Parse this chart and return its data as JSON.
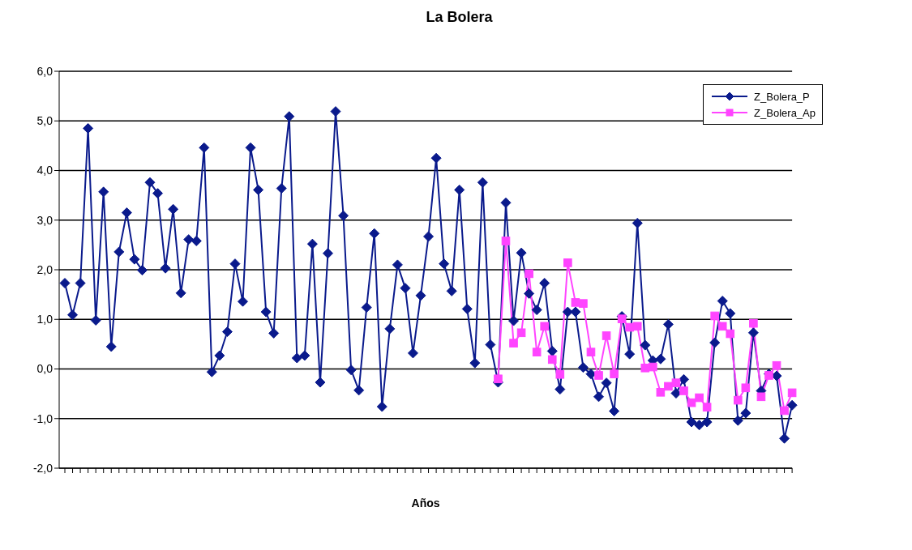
{
  "chart_data": {
    "type": "line",
    "title": "La Bolera",
    "xlabel": "Años",
    "categories": [
      null,
      null,
      null,
      null,
      null,
      null,
      null,
      null,
      null,
      null,
      null,
      null,
      null,
      null,
      null,
      null,
      null,
      null,
      null,
      null,
      null,
      null,
      null,
      null,
      null,
      null,
      null,
      null,
      null,
      null,
      null,
      null,
      null,
      null,
      null,
      null,
      null,
      null,
      null,
      null,
      null,
      null,
      null,
      null,
      null,
      null,
      null,
      null,
      null,
      null,
      null,
      null,
      null,
      null,
      null,
      null,
      null,
      null,
      null,
      null,
      null,
      null,
      null,
      null,
      null,
      null,
      null,
      null,
      null,
      null,
      null,
      null,
      null,
      null,
      null,
      null,
      null,
      null,
      null,
      null,
      null,
      null,
      null,
      null,
      null,
      null,
      null,
      null,
      null,
      null,
      null,
      null,
      null,
      null,
      null
    ],
    "series": [
      {
        "name": "Z_Bolera_P",
        "color": "#0a1a8c",
        "marker": "diamond",
        "values": [
          1.73,
          1.09,
          1.73,
          4.85,
          0.98,
          3.57,
          0.45,
          2.36,
          3.15,
          2.21,
          1.99,
          3.76,
          3.54,
          2.03,
          3.22,
          1.53,
          2.61,
          2.58,
          4.46,
          -0.06,
          0.27,
          0.75,
          2.12,
          1.36,
          4.46,
          3.61,
          1.15,
          0.72,
          3.64,
          5.09,
          0.22,
          0.27,
          2.52,
          -0.27,
          2.33,
          5.19,
          3.09,
          -0.02,
          -0.43,
          1.24,
          2.73,
          -0.76,
          0.81,
          2.1,
          1.63,
          0.32,
          1.48,
          2.67,
          4.25,
          2.12,
          1.57,
          3.61,
          1.21,
          0.12,
          3.76,
          0.49,
          -0.27,
          3.35,
          0.97,
          2.34,
          1.52,
          1.19,
          1.73,
          0.36,
          -0.41,
          1.15,
          1.15,
          0.03,
          -0.1,
          -0.56,
          -0.28,
          -0.85,
          1.06,
          0.3,
          2.94,
          0.48,
          0.17,
          0.2,
          0.9,
          -0.49,
          -0.21,
          -1.07,
          -1.13,
          -1.07,
          0.53,
          1.37,
          1.12,
          -1.04,
          -0.89,
          0.73,
          -0.44,
          -0.1,
          -0.14,
          -1.4,
          -0.73
        ]
      },
      {
        "name": "Z_Bolera_Ap",
        "color": "#ff44ff",
        "marker": "square",
        "values": [
          null,
          null,
          null,
          null,
          null,
          null,
          null,
          null,
          null,
          null,
          null,
          null,
          null,
          null,
          null,
          null,
          null,
          null,
          null,
          null,
          null,
          null,
          null,
          null,
          null,
          null,
          null,
          null,
          null,
          null,
          null,
          null,
          null,
          null,
          null,
          null,
          null,
          null,
          null,
          null,
          null,
          null,
          null,
          null,
          null,
          null,
          null,
          null,
          null,
          null,
          null,
          null,
          null,
          null,
          null,
          null,
          -0.2,
          2.58,
          0.52,
          0.73,
          1.92,
          0.34,
          0.86,
          0.19,
          -0.11,
          2.14,
          1.34,
          1.32,
          0.34,
          -0.13,
          0.67,
          -0.1,
          1.01,
          0.84,
          0.86,
          0.02,
          0.04,
          -0.47,
          -0.35,
          -0.28,
          -0.44,
          -0.68,
          -0.58,
          -0.77,
          1.07,
          0.86,
          0.71,
          -0.63,
          -0.38,
          0.92,
          -0.56,
          -0.13,
          0.07,
          -0.84,
          -0.48
        ]
      }
    ],
    "ylim": [
      -2,
      6
    ],
    "yticks": [
      {
        "value": -2,
        "label": "-2,0"
      },
      {
        "value": -1,
        "label": "-1,0"
      },
      {
        "value": 0,
        "label": "0,0"
      },
      {
        "value": 1,
        "label": "1,0"
      },
      {
        "value": 2,
        "label": "2,0"
      },
      {
        "value": 3,
        "label": "3,0"
      },
      {
        "value": 4,
        "label": "4,0"
      },
      {
        "value": 5,
        "label": "5,0"
      },
      {
        "value": 6,
        "label": "6,0"
      }
    ],
    "grid": "y",
    "legend": "top right",
    "line_style": "solid"
  }
}
